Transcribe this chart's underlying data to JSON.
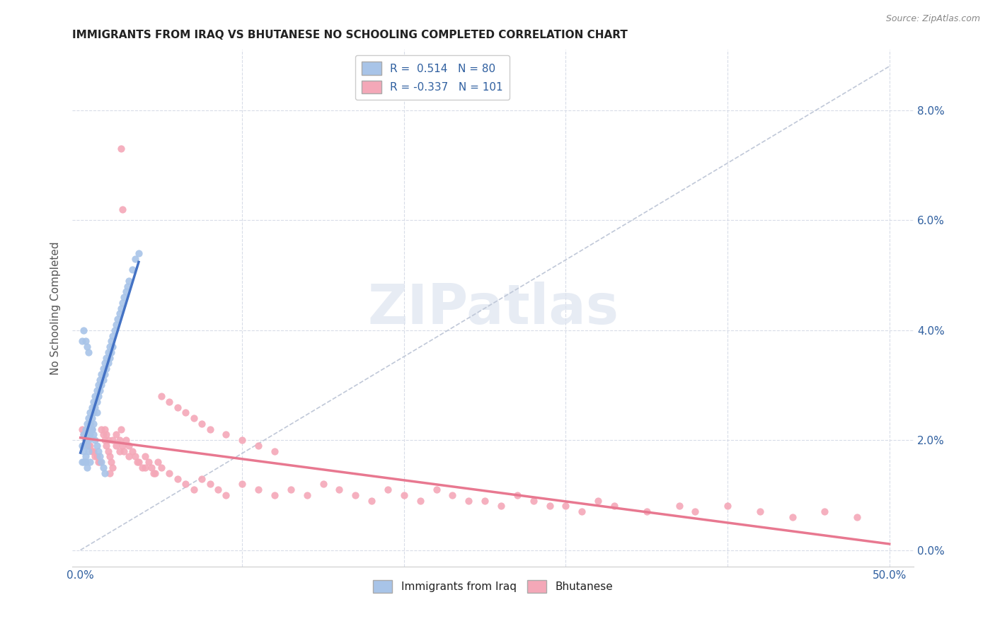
{
  "title": "IMMIGRANTS FROM IRAQ VS BHUTANESE NO SCHOOLING COMPLETED CORRELATION CHART",
  "source": "Source: ZipAtlas.com",
  "ylabel": "No Schooling Completed",
  "iraq_color": "#a8c4e8",
  "bhutan_color": "#f4a8b8",
  "iraq_line_color": "#4472c4",
  "bhutan_line_color": "#e87890",
  "diag_color": "#c0c8d8",
  "grid_color": "#d8dce8",
  "background_color": "#ffffff",
  "legend_iraq_r": " 0.514",
  "legend_iraq_n": "80",
  "legend_bhutan_r": "-0.337",
  "legend_bhutan_n": "101",
  "xlim": [
    0.0,
    0.5
  ],
  "ylim": [
    0.0,
    0.088
  ],
  "xticks": [
    0.0,
    0.1,
    0.2,
    0.3,
    0.4,
    0.5
  ],
  "xticklabels": [
    "0.0%",
    "",
    "",
    "",
    "",
    "50.0%"
  ],
  "yticks": [
    0.0,
    0.02,
    0.04,
    0.06,
    0.08
  ],
  "yticklabels_right": [
    "0.0%",
    "2.0%",
    "4.0%",
    "6.0%",
    "8.0%"
  ],
  "iraq_x": [
    0.001,
    0.002,
    0.002,
    0.003,
    0.003,
    0.003,
    0.004,
    0.004,
    0.004,
    0.005,
    0.005,
    0.005,
    0.005,
    0.006,
    0.006,
    0.006,
    0.007,
    0.007,
    0.007,
    0.008,
    0.008,
    0.008,
    0.009,
    0.009,
    0.01,
    0.01,
    0.01,
    0.011,
    0.011,
    0.012,
    0.012,
    0.013,
    0.013,
    0.014,
    0.014,
    0.015,
    0.015,
    0.016,
    0.016,
    0.017,
    0.017,
    0.018,
    0.018,
    0.019,
    0.019,
    0.02,
    0.02,
    0.021,
    0.022,
    0.023,
    0.024,
    0.025,
    0.026,
    0.027,
    0.028,
    0.029,
    0.03,
    0.032,
    0.034,
    0.036,
    0.001,
    0.001,
    0.002,
    0.002,
    0.003,
    0.003,
    0.004,
    0.004,
    0.005,
    0.006,
    0.006,
    0.007,
    0.008,
    0.009,
    0.01,
    0.011,
    0.012,
    0.013,
    0.014,
    0.015
  ],
  "iraq_y": [
    0.019,
    0.021,
    0.018,
    0.022,
    0.02,
    0.017,
    0.023,
    0.021,
    0.019,
    0.024,
    0.022,
    0.02,
    0.018,
    0.025,
    0.023,
    0.021,
    0.026,
    0.024,
    0.022,
    0.027,
    0.025,
    0.023,
    0.028,
    0.026,
    0.029,
    0.027,
    0.025,
    0.03,
    0.028,
    0.031,
    0.029,
    0.032,
    0.03,
    0.033,
    0.031,
    0.034,
    0.032,
    0.035,
    0.033,
    0.036,
    0.034,
    0.037,
    0.035,
    0.038,
    0.036,
    0.039,
    0.037,
    0.04,
    0.041,
    0.042,
    0.043,
    0.044,
    0.045,
    0.046,
    0.047,
    0.048,
    0.049,
    0.051,
    0.053,
    0.054,
    0.038,
    0.016,
    0.04,
    0.016,
    0.038,
    0.016,
    0.037,
    0.015,
    0.036,
    0.023,
    0.016,
    0.022,
    0.021,
    0.02,
    0.019,
    0.018,
    0.017,
    0.016,
    0.015,
    0.014
  ],
  "bhutan_x": [
    0.001,
    0.002,
    0.003,
    0.004,
    0.005,
    0.006,
    0.007,
    0.008,
    0.009,
    0.01,
    0.011,
    0.012,
    0.013,
    0.014,
    0.015,
    0.016,
    0.017,
    0.018,
    0.019,
    0.02,
    0.022,
    0.024,
    0.025,
    0.026,
    0.027,
    0.028,
    0.03,
    0.032,
    0.034,
    0.036,
    0.038,
    0.04,
    0.042,
    0.044,
    0.046,
    0.048,
    0.05,
    0.055,
    0.06,
    0.065,
    0.07,
    0.075,
    0.08,
    0.085,
    0.09,
    0.1,
    0.11,
    0.12,
    0.13,
    0.14,
    0.15,
    0.16,
    0.17,
    0.18,
    0.19,
    0.2,
    0.21,
    0.22,
    0.23,
    0.24,
    0.25,
    0.26,
    0.27,
    0.28,
    0.29,
    0.3,
    0.31,
    0.32,
    0.33,
    0.35,
    0.37,
    0.38,
    0.4,
    0.42,
    0.44,
    0.46,
    0.48,
    0.025,
    0.026,
    0.015,
    0.016,
    0.017,
    0.018,
    0.02,
    0.022,
    0.024,
    0.03,
    0.035,
    0.04,
    0.045,
    0.05,
    0.055,
    0.06,
    0.065,
    0.07,
    0.075,
    0.08,
    0.09,
    0.1,
    0.11,
    0.12
  ],
  "bhutan_y": [
    0.022,
    0.021,
    0.02,
    0.02,
    0.019,
    0.019,
    0.018,
    0.018,
    0.017,
    0.017,
    0.016,
    0.016,
    0.022,
    0.021,
    0.02,
    0.019,
    0.018,
    0.017,
    0.016,
    0.015,
    0.021,
    0.02,
    0.022,
    0.019,
    0.018,
    0.02,
    0.019,
    0.018,
    0.017,
    0.016,
    0.015,
    0.017,
    0.016,
    0.015,
    0.014,
    0.016,
    0.015,
    0.014,
    0.013,
    0.012,
    0.011,
    0.013,
    0.012,
    0.011,
    0.01,
    0.012,
    0.011,
    0.01,
    0.011,
    0.01,
    0.012,
    0.011,
    0.01,
    0.009,
    0.011,
    0.01,
    0.009,
    0.011,
    0.01,
    0.009,
    0.009,
    0.008,
    0.01,
    0.009,
    0.008,
    0.008,
    0.007,
    0.009,
    0.008,
    0.007,
    0.008,
    0.007,
    0.008,
    0.007,
    0.006,
    0.007,
    0.006,
    0.073,
    0.062,
    0.022,
    0.021,
    0.02,
    0.014,
    0.02,
    0.019,
    0.018,
    0.017,
    0.016,
    0.015,
    0.014,
    0.028,
    0.027,
    0.026,
    0.025,
    0.024,
    0.023,
    0.022,
    0.021,
    0.02,
    0.019,
    0.018
  ]
}
